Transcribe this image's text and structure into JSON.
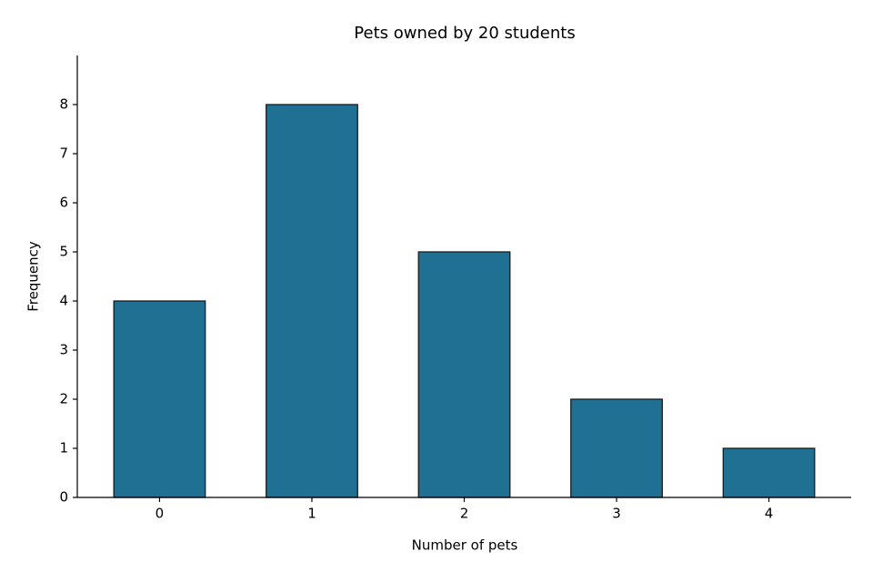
{
  "chart_data": {
    "type": "bar",
    "title": "Pets owned by 20 students",
    "x_label": "Number of pets",
    "y_label": "Frequency",
    "x": [
      0,
      1,
      2,
      3,
      4
    ],
    "values": [
      4,
      8,
      5,
      2,
      1
    ],
    "color": "#1f7093",
    "edgecolor": "#1a1a1a",
    "xlim": [
      -0.54,
      4.54
    ],
    "xticks": [
      0,
      1,
      2,
      3,
      4
    ],
    "ylim": [
      0,
      9
    ],
    "yticks": [
      0,
      1,
      2,
      3,
      4,
      5,
      6,
      7,
      8
    ],
    "grid": false
  }
}
